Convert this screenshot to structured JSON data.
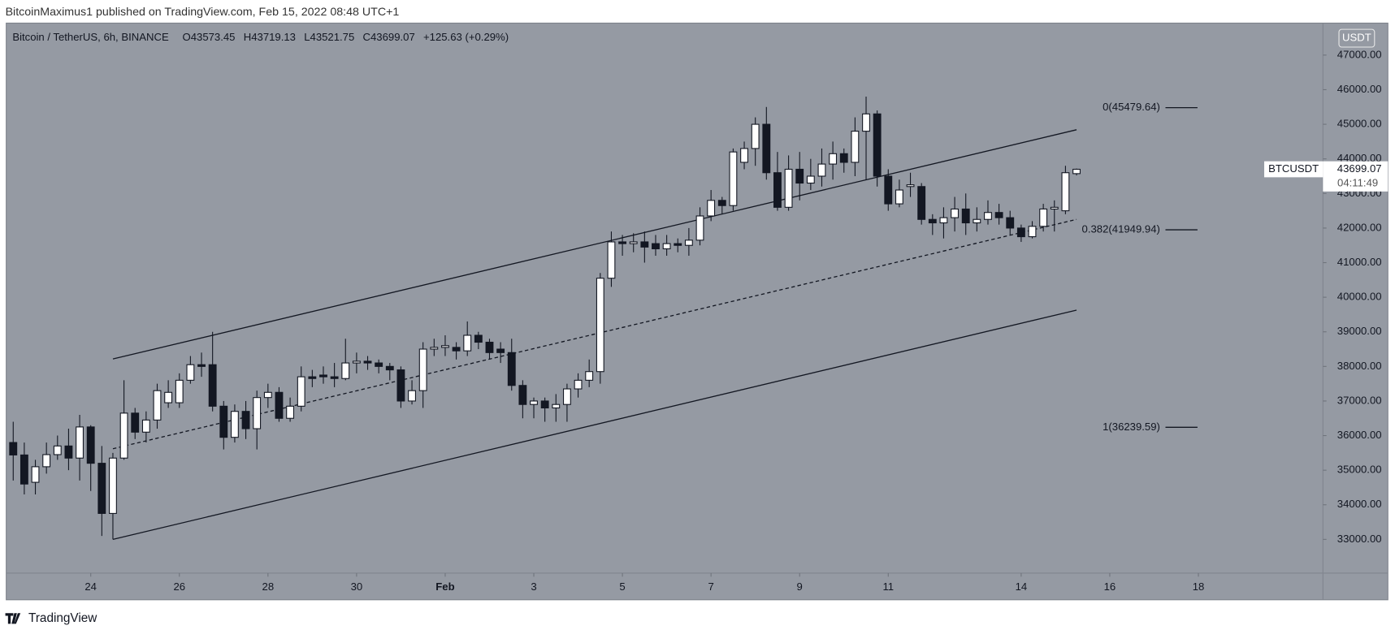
{
  "header": {
    "publisher": "BitcoinMaximus1 published on TradingView.com, Feb 15, 2022 08:48 UTC+1",
    "brand": "TradingView"
  },
  "chart_data": {
    "type": "candlestick",
    "symbol": "Bitcoin / TetherUS, 6h, BINANCE",
    "ohlc_letters": [
      "O",
      "H",
      "L",
      "C"
    ],
    "change": "+125.63 (+0.29%)",
    "currency": "USDT",
    "ticker": "BTCUSDT",
    "countdown": "04:11:49",
    "up_color": "#ffffff",
    "down_color": "#131722",
    "x": [
      "2022-01-22T06:00",
      "2022-01-22T12:00",
      "2022-01-22T18:00",
      "2022-01-23T00:00",
      "2022-01-23T06:00",
      "2022-01-23T12:00",
      "2022-01-23T18:00",
      "2022-01-24T00:00",
      "2022-01-24T06:00",
      "2022-01-24T12:00",
      "2022-01-24T18:00",
      "2022-01-25T00:00",
      "2022-01-25T06:00",
      "2022-01-25T12:00",
      "2022-01-25T18:00",
      "2022-01-26T00:00",
      "2022-01-26T06:00",
      "2022-01-26T12:00",
      "2022-01-26T18:00",
      "2022-01-27T00:00",
      "2022-01-27T06:00",
      "2022-01-27T12:00",
      "2022-01-27T18:00",
      "2022-01-28T00:00",
      "2022-01-28T06:00",
      "2022-01-28T12:00",
      "2022-01-28T18:00",
      "2022-01-29T00:00",
      "2022-01-29T06:00",
      "2022-01-29T12:00",
      "2022-01-29T18:00",
      "2022-01-30T00:00",
      "2022-01-30T06:00",
      "2022-01-30T12:00",
      "2022-01-30T18:00",
      "2022-01-31T00:00",
      "2022-01-31T06:00",
      "2022-01-31T12:00",
      "2022-01-31T18:00",
      "2022-02-01T00:00",
      "2022-02-01T06:00",
      "2022-02-01T12:00",
      "2022-02-01T18:00",
      "2022-02-02T00:00",
      "2022-02-02T06:00",
      "2022-02-02T12:00",
      "2022-02-02T18:00",
      "2022-02-03T00:00",
      "2022-02-03T06:00",
      "2022-02-03T12:00",
      "2022-02-03T18:00",
      "2022-02-04T00:00",
      "2022-02-04T06:00",
      "2022-02-04T12:00",
      "2022-02-04T18:00",
      "2022-02-05T00:00",
      "2022-02-05T06:00",
      "2022-02-05T12:00",
      "2022-02-05T18:00",
      "2022-02-06T00:00",
      "2022-02-06T06:00",
      "2022-02-06T12:00",
      "2022-02-06T18:00",
      "2022-02-07T00:00",
      "2022-02-07T06:00",
      "2022-02-07T12:00",
      "2022-02-07T18:00",
      "2022-02-08T00:00",
      "2022-02-08T06:00",
      "2022-02-08T12:00",
      "2022-02-08T18:00",
      "2022-02-09T00:00",
      "2022-02-09T06:00",
      "2022-02-09T12:00",
      "2022-02-09T18:00",
      "2022-02-10T00:00",
      "2022-02-10T06:00",
      "2022-02-10T12:00",
      "2022-02-10T18:00",
      "2022-02-11T00:00",
      "2022-02-11T06:00",
      "2022-02-11T12:00",
      "2022-02-11T18:00",
      "2022-02-12T00:00",
      "2022-02-12T06:00",
      "2022-02-12T12:00",
      "2022-02-12T18:00",
      "2022-02-13T00:00",
      "2022-02-13T06:00",
      "2022-02-13T12:00",
      "2022-02-13T18:00",
      "2022-02-14T00:00",
      "2022-02-14T06:00",
      "2022-02-14T12:00",
      "2022-02-14T18:00",
      "2022-02-15T00:00",
      "2022-02-15T06:00"
    ],
    "open": [
      35800,
      35440,
      34650,
      35100,
      35450,
      35700,
      35350,
      36250,
      35200,
      33750,
      35350,
      36650,
      36100,
      36450,
      36950,
      36950,
      37600,
      38050,
      38050,
      36850,
      35950,
      36700,
      36200,
      37100,
      37250,
      36500,
      36850,
      37700,
      37750,
      37700,
      37650,
      38100,
      38150,
      38100,
      38000,
      37900,
      37000,
      37300,
      38500,
      38550,
      38550,
      38450,
      38900,
      38700,
      38500,
      38400,
      37450,
      36900,
      37000,
      36800,
      36900,
      37350,
      37600,
      37850,
      40550,
      41600,
      41550,
      41600,
      41550,
      41400,
      41550,
      41500,
      41650,
      42350,
      42800,
      42650,
      43900,
      44300,
      45000,
      43600,
      42600,
      43700,
      43300,
      43500,
      43850,
      44150,
      43900,
      44800,
      45300,
      43500,
      42700,
      43200,
      43200,
      42250,
      42150,
      42300,
      42550,
      42150,
      42250,
      42450,
      42300,
      42000,
      41750,
      42050,
      42550,
      42500,
      43573.45
    ],
    "high": [
      36400,
      35800,
      35300,
      35800,
      36000,
      36200,
      36600,
      36300,
      35700,
      35500,
      37600,
      36800,
      36700,
      37500,
      37600,
      37800,
      38300,
      38400,
      39000,
      37000,
      36900,
      37000,
      37300,
      37500,
      37400,
      37100,
      38000,
      37900,
      38000,
      38100,
      38800,
      38400,
      38300,
      38200,
      38100,
      38000,
      37600,
      38700,
      38800,
      38900,
      38700,
      39300,
      39000,
      38800,
      38700,
      38800,
      37600,
      37100,
      37100,
      37200,
      37500,
      37800,
      38200,
      40700,
      41900,
      41800,
      41850,
      41900,
      41800,
      41800,
      41700,
      42000,
      42600,
      43100,
      42900,
      44300,
      44500,
      45200,
      45500,
      44200,
      44100,
      44200,
      44000,
      44300,
      44500,
      44300,
      45200,
      45800,
      45400,
      43700,
      43400,
      43600,
      43300,
      42400,
      42600,
      42900,
      43000,
      42600,
      42800,
      42700,
      42500,
      42100,
      42200,
      42700,
      42800,
      43800,
      43719.13
    ],
    "low": [
      34700,
      34300,
      34300,
      34900,
      35300,
      35000,
      34700,
      34400,
      33100,
      33000,
      35300,
      35900,
      35800,
      36200,
      36800,
      36800,
      37500,
      37700,
      36700,
      35600,
      35800,
      35900,
      35600,
      36800,
      36400,
      36400,
      36700,
      37400,
      37500,
      37400,
      37600,
      37800,
      37900,
      37800,
      37600,
      36800,
      36900,
      36800,
      38300,
      38300,
      38200,
      38300,
      38500,
      38200,
      38100,
      37300,
      36500,
      36500,
      36400,
      36400,
      36400,
      37100,
      37400,
      37500,
      40300,
      41200,
      41300,
      41000,
      41200,
      41200,
      41300,
      41200,
      41500,
      42200,
      42400,
      42500,
      43700,
      43800,
      43400,
      42500,
      42500,
      42800,
      43100,
      43200,
      43400,
      43600,
      43500,
      43400,
      43200,
      42500,
      42600,
      42900,
      42100,
      41800,
      41700,
      41900,
      41800,
      41900,
      42100,
      42100,
      41800,
      41600,
      41700,
      41900,
      41900,
      42400,
      43521.75
    ],
    "close": [
      35440,
      34600,
      35100,
      35450,
      35700,
      35350,
      36250,
      35200,
      33750,
      35350,
      36650,
      36100,
      36450,
      37300,
      37250,
      37600,
      38050,
      38000,
      36850,
      35950,
      36700,
      36200,
      37100,
      37250,
      36500,
      36850,
      37700,
      37650,
      37700,
      37650,
      38100,
      38150,
      38100,
      38000,
      37900,
      37000,
      37300,
      38500,
      38550,
      38600,
      38450,
      38900,
      38700,
      38400,
      38400,
      37450,
      36900,
      37000,
      36800,
      36900,
      37350,
      37600,
      37850,
      40550,
      41600,
      41550,
      41600,
      41450,
      41400,
      41550,
      41500,
      41650,
      42350,
      42800,
      42650,
      44200,
      44300,
      45000,
      43600,
      42600,
      43700,
      43300,
      43500,
      43850,
      44150,
      43900,
      44800,
      45300,
      43500,
      42700,
      43100,
      43250,
      42250,
      42150,
      42300,
      42550,
      42150,
      42250,
      42450,
      42300,
      42000,
      41750,
      42050,
      42550,
      42600,
      43600,
      43699.07
    ],
    "trendlines": [
      {
        "x": [
          "2022-01-24T12:00",
          "2022-02-15T06:00"
        ],
        "y": [
          38215,
          44842
        ],
        "dashed": false
      },
      {
        "x": [
          "2022-01-24T12:00",
          "2022-02-15T06:00"
        ],
        "y": [
          35620,
          42250
        ],
        "dashed": true
      },
      {
        "x": [
          "2022-01-24T12:00",
          "2022-02-15T06:00"
        ],
        "y": [
          33000,
          39628
        ],
        "dashed": false
      }
    ],
    "fib_levels": [
      {
        "label": "0(45479.64)",
        "value": 45479.64
      },
      {
        "label": "0.382(41949.94)",
        "value": 41949.94
      },
      {
        "label": "1(36239.59)",
        "value": 36239.59
      }
    ],
    "xlim": [
      "2022-01-22T02:13",
      "2022-02-20T19:28"
    ],
    "xticks": [
      {
        "value": "2022-01-24",
        "label": "24"
      },
      {
        "value": "2022-01-26",
        "label": "26"
      },
      {
        "value": "2022-01-28",
        "label": "28"
      },
      {
        "value": "2022-01-30",
        "label": "30"
      },
      {
        "value": "2022-02-01",
        "label": "Feb"
      },
      {
        "value": "2022-02-03",
        "label": "3"
      },
      {
        "value": "2022-02-05",
        "label": "5"
      },
      {
        "value": "2022-02-07",
        "label": "7"
      },
      {
        "value": "2022-02-09",
        "label": "9"
      },
      {
        "value": "2022-02-11",
        "label": "11"
      },
      {
        "value": "2022-02-14",
        "label": "14"
      },
      {
        "value": "2022-02-16",
        "label": "16"
      },
      {
        "value": "2022-02-18",
        "label": "18"
      }
    ],
    "ylim": [
      32024,
      47925
    ],
    "yticks": [
      {
        "value": 33000,
        "label": "33000.00"
      },
      {
        "value": 34000,
        "label": "34000.00"
      },
      {
        "value": 35000,
        "label": "35000.00"
      },
      {
        "value": 36000,
        "label": "36000.00"
      },
      {
        "value": 37000,
        "label": "37000.00"
      },
      {
        "value": 38000,
        "label": "38000.00"
      },
      {
        "value": 39000,
        "label": "39000.00"
      },
      {
        "value": 40000,
        "label": "40000.00"
      },
      {
        "value": 41000,
        "label": "41000.00"
      },
      {
        "value": 42000,
        "label": "42000.00"
      },
      {
        "value": 43000,
        "label": "43000.00"
      },
      {
        "value": 44000,
        "label": "44000.00"
      },
      {
        "value": 45000,
        "label": "45000.00"
      },
      {
        "value": 46000,
        "label": "46000.00"
      },
      {
        "value": 47000,
        "label": "47000.00"
      }
    ]
  }
}
